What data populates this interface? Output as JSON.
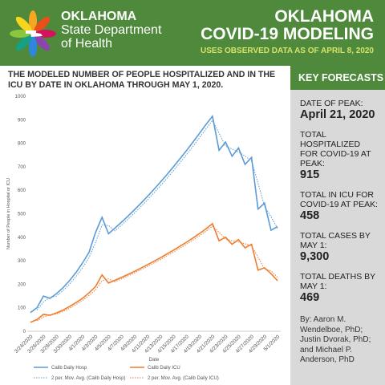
{
  "header": {
    "org": [
      "OKLAHOMA",
      "State Department",
      "of Health"
    ],
    "title": [
      "OKLAHOMA",
      "COVID-19 MODELING"
    ],
    "subtitle": "USES OBSERVED DATA AS OF APRIL 8, 2020"
  },
  "panel": {
    "title": "KEY FORECASTS",
    "forecasts": [
      {
        "label": "DATE OF PEAK:",
        "value": "April 21, 2020"
      },
      {
        "label": "TOTAL HOSPITALIZED FOR COVID-19 AT PEAK:",
        "value": "915"
      },
      {
        "label": "TOTAL IN ICU FOR COVID-19 AT PEAK:",
        "value": "458"
      },
      {
        "label": "TOTAL CASES BY MAY 1:",
        "value": "9,300"
      },
      {
        "label": "TOTAL DEATHS BY MAY 1:",
        "value": "469"
      }
    ],
    "authors": "By: Aaron M. Wendelboe, PhD; Justin Dvorak, PhD; and Michael P. Anderson, PhD"
  },
  "chart_data": {
    "type": "line",
    "title": "THE MODELED NUMBER OF PEOPLE HOSPITALIZED AND IN THE ICU BY DATE IN OKLAHOMA THROUGH MAY 1, 2020.",
    "xlabel": "Date",
    "ylabel": "Number of People in Hospital or ICU",
    "categories": [
      "3/24/2020",
      null,
      "3/26/2020",
      null,
      "3/28/2020",
      null,
      "3/30/2020",
      null,
      "4/1/2020",
      null,
      "4/3/2020",
      null,
      "4/5/2020",
      null,
      "4/7/2020",
      null,
      "4/9/2020",
      null,
      "4/11/2020",
      null,
      "4/13/2020",
      null,
      "4/15/2020",
      null,
      "4/17/2020",
      null,
      "4/19/2020",
      null,
      "4/21/2020",
      null,
      "4/23/2020",
      null,
      "4/25/2020",
      null,
      "4/27/2020",
      null,
      "4/29/2020",
      null,
      "5/1/2020"
    ],
    "ylim": [
      0,
      1000
    ],
    "yticks": [
      0,
      100,
      200,
      300,
      400,
      500,
      600,
      700,
      800,
      900,
      1000
    ],
    "grid": false,
    "series": [
      {
        "name": "Calib Daily Hosp",
        "color": "#5b9bd5",
        "dashed": false,
        "values": [
          80,
          100,
          150,
          140,
          160,
          185,
          215,
          250,
          290,
          335,
          420,
          485,
          415,
          439,
          464,
          490,
          517,
          545,
          574,
          604,
          635,
          667,
          700,
          734,
          769,
          805,
          842,
          880,
          915,
          770,
          805,
          745,
          780,
          710,
          740,
          520,
          545,
          430,
          445
        ]
      },
      {
        "name": "Calib Daily ICU",
        "color": "#ed7d31",
        "dashed": false,
        "values": [
          38,
          50,
          72,
          68,
          78,
          90,
          105,
          122,
          140,
          163,
          190,
          240,
          205,
          217,
          229,
          242,
          255,
          269,
          283,
          298,
          313,
          329,
          345,
          362,
          379,
          397,
          416,
          436,
          458,
          385,
          400,
          370,
          390,
          355,
          370,
          260,
          270,
          245,
          215
        ]
      },
      {
        "name": "2 per. Mov. Avg. (Calib Daily Hosp)",
        "color": "#5b9bd5",
        "dashed": true,
        "values": [
          null,
          90,
          125,
          145,
          150,
          172.5,
          200,
          232.5,
          270,
          312.5,
          377.5,
          452.5,
          450,
          427,
          451.5,
          477,
          503.5,
          531,
          559.5,
          589,
          619.5,
          651,
          683.5,
          717,
          751.5,
          787,
          823.5,
          861,
          897.5,
          842.5,
          787.5,
          775,
          762.5,
          745,
          725,
          630,
          532.5,
          487.5,
          437.5
        ]
      },
      {
        "name": "2 per. Mov. Avg. (Calib Daily ICU)",
        "color": "#ed7d31",
        "dashed": true,
        "values": [
          null,
          44,
          61,
          70,
          73,
          84,
          97.5,
          113.5,
          131,
          151.5,
          176.5,
          215,
          222.5,
          211,
          223,
          235.5,
          248.5,
          262,
          276,
          290.5,
          305.5,
          321,
          337,
          353.5,
          370.5,
          388,
          406.5,
          426,
          447,
          421.5,
          392.5,
          385,
          380,
          372.5,
          362.5,
          315,
          265,
          257.5,
          230
        ]
      }
    ]
  }
}
